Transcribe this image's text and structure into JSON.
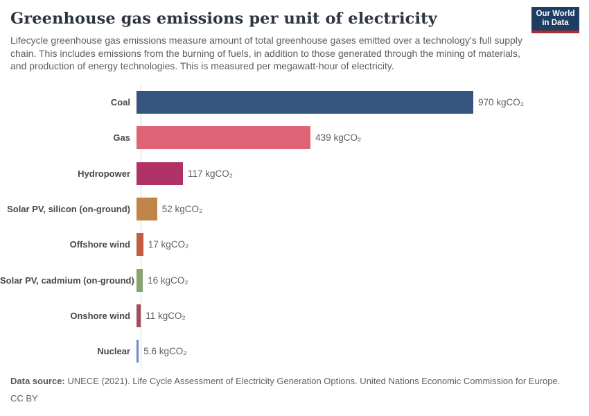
{
  "header": {
    "title": "Greenhouse gas emissions per unit of electricity",
    "subtitle": "Lifecycle greenhouse gas emissions measure amount of total greenhouse gases emitted over a technology's full supply chain. This includes emissions from the burning of fuels, in addition to those generated through the mining of materials, and production of energy technologies. This is measured per megawatt-hour of electricity.",
    "logo": {
      "line1": "Our World",
      "line2": "in Data",
      "bg_color": "#1d3d63",
      "accent_color": "#aa2d2d"
    }
  },
  "chart_data": {
    "type": "bar",
    "orientation": "horizontal",
    "title": "Greenhouse gas emissions per unit of electricity",
    "unit": "kgCO₂",
    "xlim": [
      0,
      970
    ],
    "grid": false,
    "legend": "none",
    "categories": [
      "Coal",
      "Gas",
      "Hydropower",
      "Solar PV, silicon (on-ground)",
      "Offshore wind",
      "Solar PV, cadmium (on-ground)",
      "Onshore wind",
      "Nuclear"
    ],
    "values": [
      970,
      439,
      117,
      52,
      17,
      16,
      11,
      5.6
    ],
    "value_labels": [
      "970 kgCO₂",
      "439 kgCO₂",
      "117 kgCO₂",
      "52 kgCO₂",
      "17 kgCO₂",
      "16 kgCO₂",
      "11 kgCO₂",
      "5.6 kgCO₂"
    ],
    "colors": [
      "#36557e",
      "#de6475",
      "#ae3266",
      "#c18448",
      "#c25c43",
      "#88a471",
      "#a14e5c",
      "#6f8cbc"
    ],
    "axis_line_color": "#d9d9d9"
  },
  "footer": {
    "source_label": "Data source:",
    "source_text": " UNECE (2021). Life Cycle Assessment of Electricity Generation Options. United Nations Economic Commission for Europe.",
    "license": "CC BY"
  }
}
